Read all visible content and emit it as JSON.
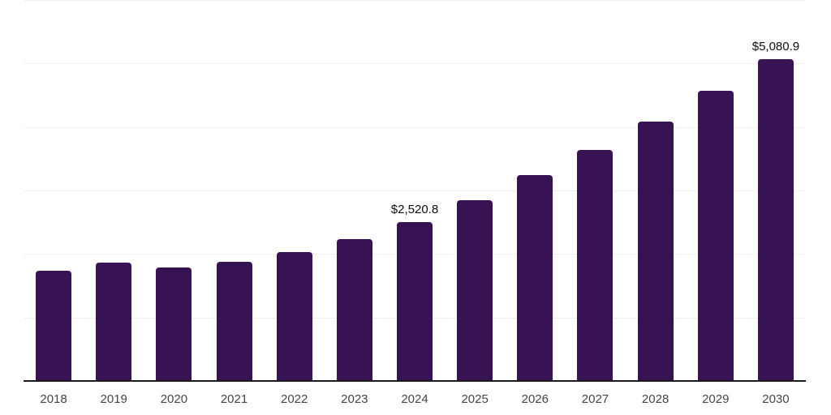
{
  "page": {
    "background_color": "#ffffff"
  },
  "chart_data": {
    "type": "bar",
    "title": "",
    "xlabel": "",
    "ylabel": "",
    "categories": [
      "2018",
      "2019",
      "2020",
      "2021",
      "2022",
      "2023",
      "2024",
      "2025",
      "2026",
      "2027",
      "2028",
      "2029",
      "2030"
    ],
    "values": [
      1750,
      1880,
      1805,
      1890,
      2040,
      2245,
      2520.8,
      2865,
      3250,
      3650,
      4100,
      4580,
      5080.9
    ],
    "data_labels": {
      "2024": "$2,520.8",
      "2030": "$5,080.9"
    },
    "ylim": [
      0,
      6000
    ],
    "gridline_step": 1000,
    "grid": "horizontal",
    "legend": "none",
    "y_axis_tick_labels": "none",
    "colors": {
      "bar": "#371353",
      "gridline": "#f1f1f2",
      "axis_line": "#1a1a1a",
      "x_tick_label": "#454545",
      "data_label": "#0d0d0d",
      "background": "#ffffff"
    }
  }
}
